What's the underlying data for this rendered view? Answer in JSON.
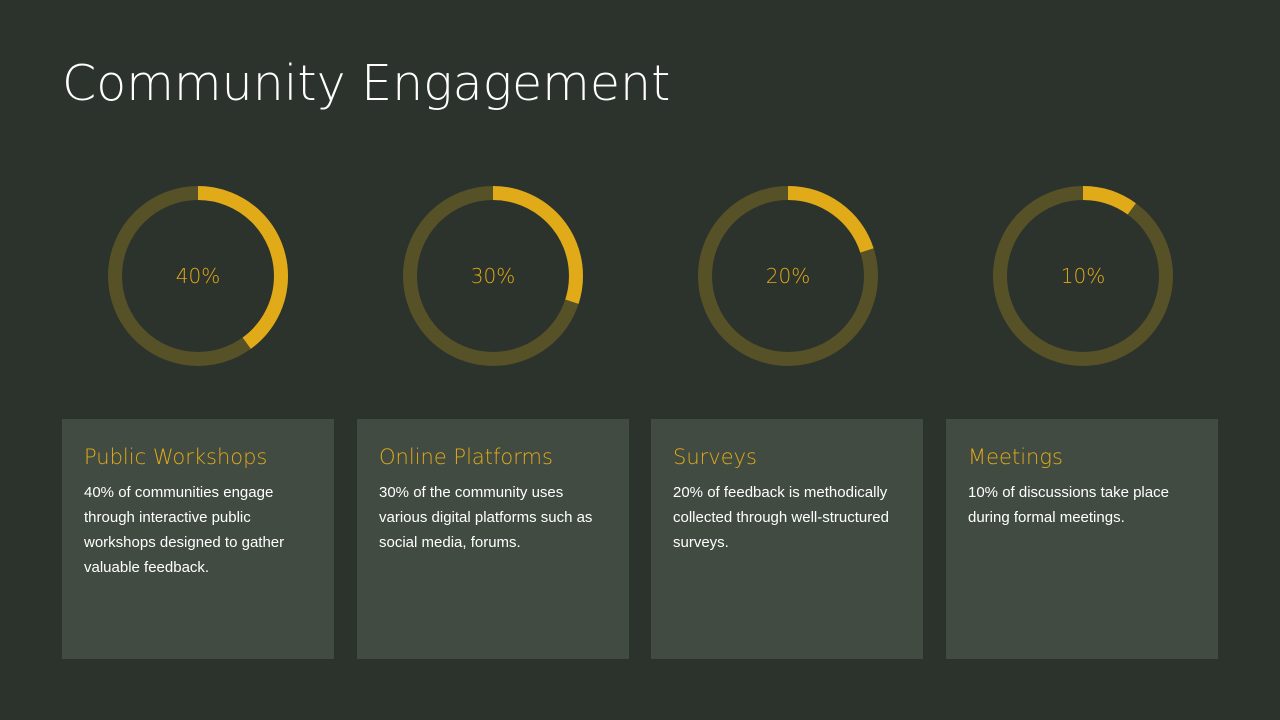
{
  "title": "Community Engagement",
  "colors": {
    "background": "#2c332c",
    "card_background": "#414b41",
    "accent": "#e0aa18",
    "track": "#575128",
    "text": "#ffffff"
  },
  "chart_data": [
    {
      "type": "pie",
      "categories": [
        "Public Workshops",
        "Remainder"
      ],
      "values": [
        40,
        60
      ],
      "label": "40%"
    },
    {
      "type": "pie",
      "categories": [
        "Online Platforms",
        "Remainder"
      ],
      "values": [
        30,
        70
      ],
      "label": "30%"
    },
    {
      "type": "pie",
      "categories": [
        "Surveys",
        "Remainder"
      ],
      "values": [
        20,
        80
      ],
      "label": "20%"
    },
    {
      "type": "pie",
      "categories": [
        "Meetings",
        "Remainder"
      ],
      "values": [
        10,
        90
      ],
      "label": "10%"
    }
  ],
  "cards": [
    {
      "title": "Public Workshops",
      "text": "40% of communities engage through interactive public workshops designed to gather valuable feedback."
    },
    {
      "title": "Online Platforms",
      "text": "30% of the community uses various digital platforms such as social media, forums."
    },
    {
      "title": "Surveys",
      "text": "20% of feedback is methodically collected through well-structured surveys."
    },
    {
      "title": "Meetings",
      "text": "10% of discussions take place during formal meetings."
    }
  ]
}
